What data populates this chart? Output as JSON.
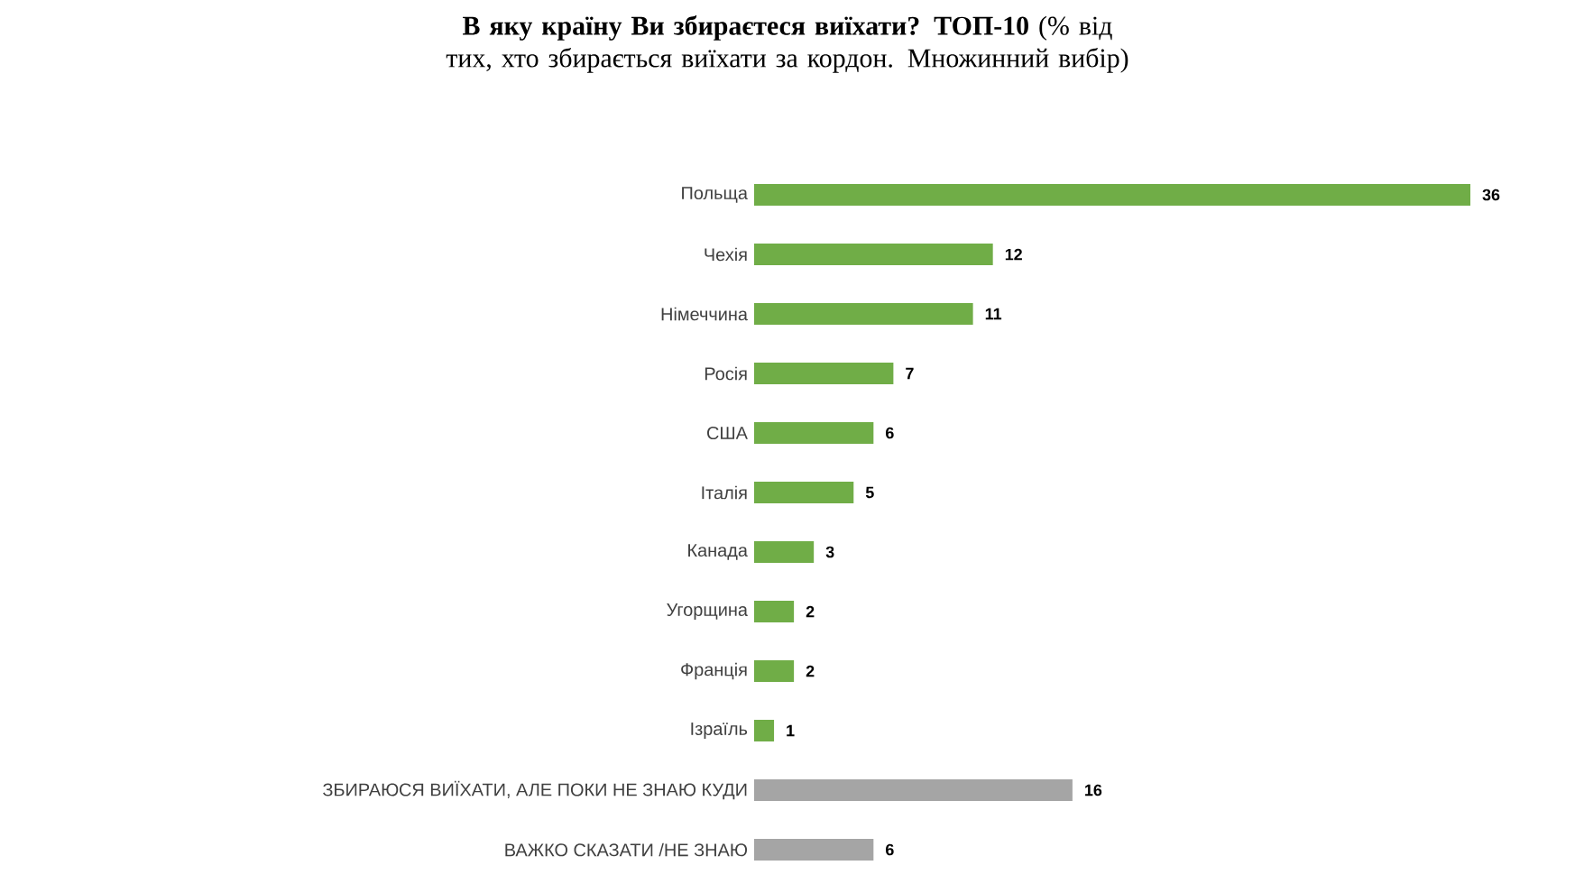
{
  "chart_data": {
    "type": "bar",
    "orientation": "horizontal",
    "title": "**В яку країну Ви збираєтеся виїхати? ТОП-10** (% від тих, хто збирається виїхати за кордон. Множинний вибір)",
    "categories": [
      "Польща",
      "Чехія",
      "Німеччина",
      "Росія",
      "США",
      "Італія",
      "Канада",
      "Угорщина",
      "Франція",
      "Ізраїль",
      "ЗБИРАЮСЯ ВИЇХАТИ, АЛЕ ПОКИ НЕ ЗНАЮ КУДИ",
      "ВАЖКО СКАЗАТИ /НЕ ЗНАЮ"
    ],
    "values": [
      36,
      12,
      11,
      7,
      6,
      5,
      3,
      2,
      2,
      1,
      16,
      6
    ],
    "colors": [
      "#70ad47",
      "#70ad47",
      "#70ad47",
      "#70ad47",
      "#70ad47",
      "#70ad47",
      "#70ad47",
      "#70ad47",
      "#70ad47",
      "#70ad47",
      "#a5a5a5",
      "#a5a5a5"
    ],
    "data_labels": true
  }
}
